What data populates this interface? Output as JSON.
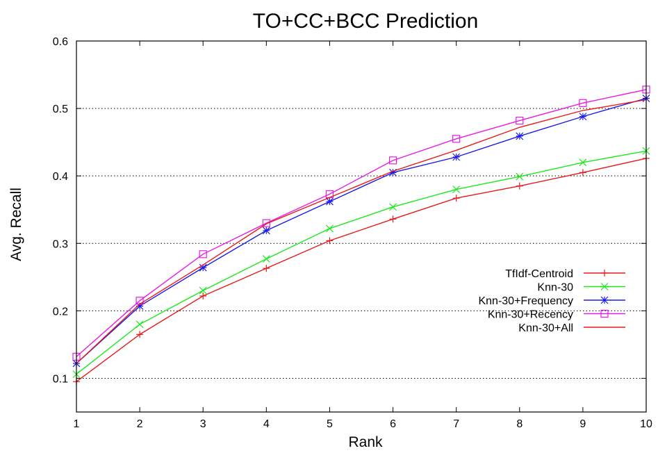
{
  "chart_data": {
    "type": "line",
    "title": "TO+CC+BCC Prediction",
    "xlabel": "Rank",
    "ylabel": "Avg. Recall",
    "xlim": [
      1,
      10
    ],
    "ylim": [
      0.05,
      0.6
    ],
    "x": [
      1,
      2,
      3,
      4,
      5,
      6,
      7,
      8,
      9,
      10
    ],
    "x_ticks": [
      "1",
      "2",
      "3",
      "4",
      "5",
      "6",
      "7",
      "8",
      "9",
      "10"
    ],
    "y_ticks": [
      {
        "value": 0.1,
        "label": "0.1"
      },
      {
        "value": 0.2,
        "label": "0.2"
      },
      {
        "value": 0.3,
        "label": "0.3"
      },
      {
        "value": 0.4,
        "label": "0.4"
      },
      {
        "value": 0.5,
        "label": "0.5"
      },
      {
        "value": 0.6,
        "label": "0.6"
      }
    ],
    "grid": "horizontal dotted",
    "legend_position": "right",
    "series": [
      {
        "name": "TfIdf-Centroid",
        "color": "#e8191a",
        "marker": "plus",
        "values": [
          0.095,
          0.165,
          0.222,
          0.263,
          0.304,
          0.336,
          0.367,
          0.385,
          0.405,
          0.426
        ]
      },
      {
        "name": "Knn-30",
        "color": "#1ae81a",
        "marker": "cross",
        "values": [
          0.106,
          0.18,
          0.23,
          0.277,
          0.322,
          0.354,
          0.38,
          0.399,
          0.42,
          0.437
        ]
      },
      {
        "name": "Knn-30+Frequency",
        "color": "#1a1ae8",
        "marker": "asterisk",
        "values": [
          0.122,
          0.207,
          0.264,
          0.319,
          0.362,
          0.405,
          0.428,
          0.459,
          0.488,
          0.515
        ]
      },
      {
        "name": "Knn-30+Recency",
        "color": "#e81ae8",
        "marker": "square",
        "values": [
          0.132,
          0.215,
          0.284,
          0.33,
          0.373,
          0.423,
          0.455,
          0.482,
          0.508,
          0.528
        ]
      },
      {
        "name": "Knn-30+All",
        "color": "#e8191a",
        "marker": "none",
        "values": [
          0.122,
          0.21,
          0.268,
          0.329,
          0.368,
          0.407,
          0.438,
          0.472,
          0.497,
          0.513
        ]
      }
    ]
  }
}
